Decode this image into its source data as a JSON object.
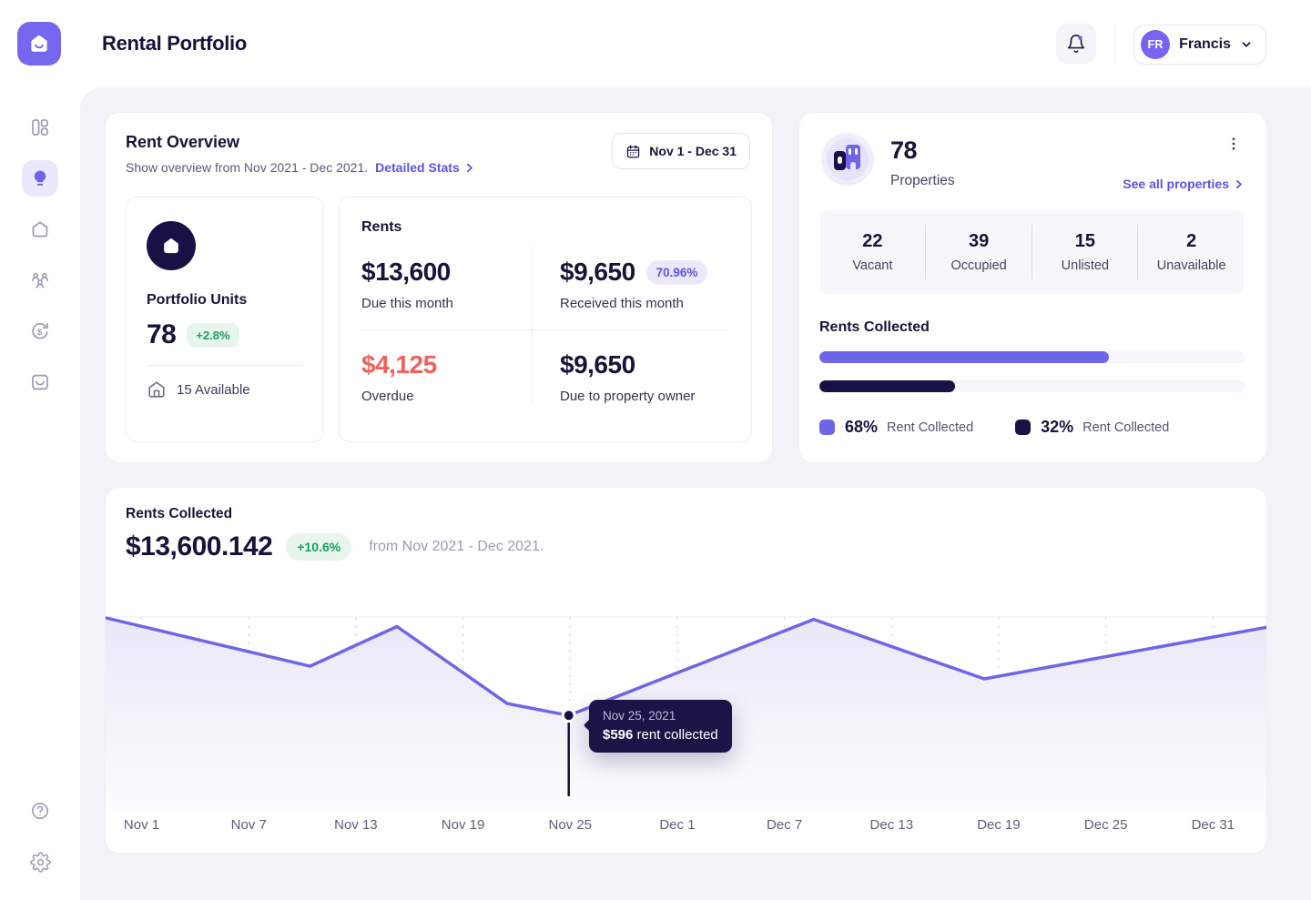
{
  "colors": {
    "accent": "#7065e8",
    "navy": "#171245",
    "green": "#17a25f",
    "red": "#f2625d"
  },
  "header": {
    "title": "Rental Portfolio",
    "notifications_icon": "bell-icon-with-unread-dot",
    "user": {
      "initials": "FR",
      "name": "Francis"
    }
  },
  "sidebar": {
    "items": [
      {
        "icon": "dashboard-icon",
        "active": false
      },
      {
        "icon": "bulb-icon",
        "active": true
      },
      {
        "icon": "home-icon",
        "active": false
      },
      {
        "icon": "tenants-icon",
        "active": false
      },
      {
        "icon": "payments-refund-icon",
        "active": false
      },
      {
        "icon": "inbox-icon",
        "active": false
      }
    ],
    "bottom_items": [
      {
        "icon": "help-icon"
      },
      {
        "icon": "settings-icon"
      }
    ]
  },
  "rent_overview": {
    "title": "Rent Overview",
    "subtitle": "Show overview from Nov 2021 - Dec 2021.",
    "link": "Detailed Stats",
    "date_range": "Nov 1 - Dec 31",
    "portfolio_units": {
      "label": "Portfolio Units",
      "value": "78",
      "delta": "+2.8%",
      "available": "15 Available"
    },
    "rents": {
      "title": "Rents",
      "due": {
        "value": "$13,600",
        "label": "Due this month"
      },
      "received": {
        "value": "$9,650",
        "badge": "70.96%",
        "label": "Received this month"
      },
      "overdue": {
        "value": "$4,125",
        "label": "Overdue"
      },
      "owner": {
        "value": "$9,650",
        "label": "Due to property owner"
      }
    }
  },
  "properties": {
    "count": "78",
    "label": "Properties",
    "link": "See all properties",
    "stats": [
      {
        "value": "22",
        "label": "Vacant"
      },
      {
        "value": "39",
        "label": "Occupied"
      },
      {
        "value": "15",
        "label": "Unlisted"
      },
      {
        "value": "2",
        "label": "Unavailable"
      }
    ],
    "rents_collected": {
      "title": "Rents Collected",
      "bars": [
        {
          "pct": 68,
          "color": "#7065e8"
        },
        {
          "pct": 32,
          "color": "#171245"
        }
      ],
      "legend": [
        {
          "pct": "68%",
          "label": "Rent Collected"
        },
        {
          "pct": "32%",
          "label": "Rent Collected"
        }
      ]
    }
  },
  "chart": {
    "title": "Rents Collected",
    "value": "$13,600.142",
    "delta": "+10.6%",
    "period": "from Nov 2021 - Dec 2021.",
    "tooltip": {
      "date": "Nov 25, 2021",
      "amount": "$596",
      "text": " rent collected"
    }
  },
  "chart_data": {
    "type": "area",
    "title": "Rents Collected, daily, Nov 1 2021 - Dec 31 2021",
    "x_ticks": [
      "Nov 1",
      "Nov 7",
      "Nov 13",
      "Nov 19",
      "Nov 25",
      "Dec 1",
      "Dec 7",
      "Dec 13",
      "Dec 19",
      "Dec 25",
      "Dec 31"
    ],
    "series": [
      {
        "name": "Rent collected ($/day, estimated from curve)",
        "points": [
          {
            "pos": 0.0,
            "value": 719
          },
          {
            "pos": 0.176,
            "value": 658
          },
          {
            "pos": 0.251,
            "value": 708
          },
          {
            "pos": 0.346,
            "value": 611
          },
          {
            "pos": 0.399,
            "value": 596
          },
          {
            "pos": 0.61,
            "value": 717
          },
          {
            "pos": 0.757,
            "value": 642
          },
          {
            "pos": 1.0,
            "value": 707
          }
        ]
      }
    ],
    "ylim": [
      485,
      720
    ],
    "highlight": {
      "index": 4,
      "x_label": "Nov 25, 2021",
      "value": 596,
      "label": "$596 rent collected"
    },
    "grid": "vertical-dashed",
    "legend_position": "none",
    "line_color": "#7065e8",
    "tick_frac_start": 0.031,
    "tick_frac_end": 0.954
  }
}
